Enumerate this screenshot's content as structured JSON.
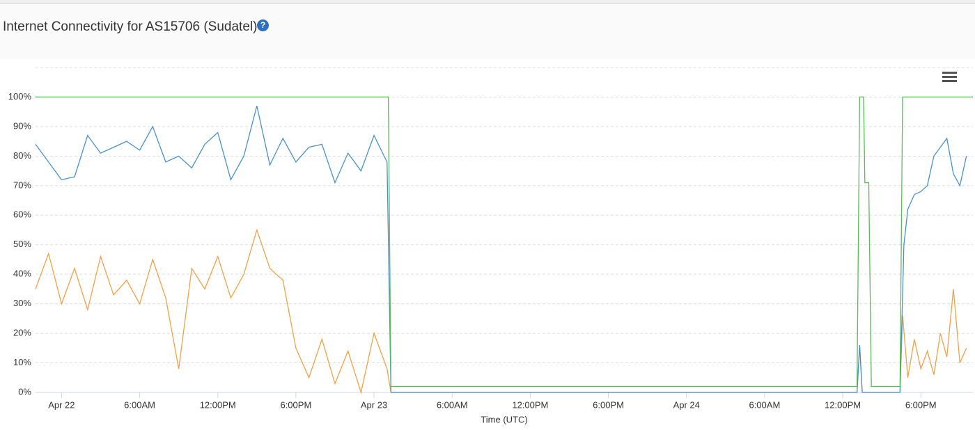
{
  "chart_data": {
    "type": "line",
    "title": "Internet Connectivity for AS15706 (Sudatel)",
    "x_label": "Time (UTC)",
    "xlim": [
      -2,
      70
    ],
    "xticks": [
      {
        "value": 0,
        "label": "Apr 22"
      },
      {
        "value": 6,
        "label": "6:00AM"
      },
      {
        "value": 12,
        "label": "12:00PM"
      },
      {
        "value": 18,
        "label": "6:00PM"
      },
      {
        "value": 24,
        "label": "Apr 23"
      },
      {
        "value": 30,
        "label": "6:00AM"
      },
      {
        "value": 36,
        "label": "12:00PM"
      },
      {
        "value": 42,
        "label": "6:00PM"
      },
      {
        "value": 48,
        "label": "Apr 24"
      },
      {
        "value": 54,
        "label": "6:00AM"
      },
      {
        "value": 60,
        "label": "12:00PM"
      },
      {
        "value": 66,
        "label": "6:00PM"
      }
    ],
    "ylim": [
      0,
      110
    ],
    "yticks": [
      {
        "value": 0,
        "label": "0%"
      },
      {
        "value": 10,
        "label": "10%"
      },
      {
        "value": 20,
        "label": "20%"
      },
      {
        "value": 30,
        "label": "30%"
      },
      {
        "value": 40,
        "label": "40%"
      },
      {
        "value": 50,
        "label": "50%"
      },
      {
        "value": 60,
        "label": "60%"
      },
      {
        "value": 70,
        "label": "70%"
      },
      {
        "value": 80,
        "label": "80%"
      },
      {
        "value": 90,
        "label": "90%"
      },
      {
        "value": 100,
        "label": "100%"
      }
    ],
    "grid": true,
    "series": [
      {
        "color": "#f0a14a",
        "x": [
          -2,
          -1,
          0,
          1,
          2,
          3,
          4,
          5,
          6,
          7,
          8,
          9,
          10,
          11,
          12,
          13,
          14,
          15,
          16,
          17,
          18,
          19,
          20,
          21,
          22,
          23,
          24,
          25,
          25.3,
          61.1,
          61.3,
          61.5,
          64.4,
          64.6,
          65,
          65.5,
          66,
          66.5,
          67,
          67.5,
          68,
          68.5,
          69,
          69.5
        ],
        "values": [
          35,
          47,
          30,
          42,
          28,
          46,
          33,
          38,
          30,
          45,
          32,
          8,
          42,
          35,
          46,
          32,
          40,
          55,
          42,
          38,
          15,
          5,
          18,
          3,
          14,
          0,
          20,
          8,
          0,
          0,
          16,
          0,
          0,
          26,
          5,
          18,
          8,
          14,
          6,
          20,
          12,
          35,
          10,
          15
        ]
      },
      {
        "color": "#4a90c8",
        "x": [
          -2,
          -1,
          0,
          1,
          2,
          3,
          4,
          5,
          6,
          7,
          8,
          9,
          10,
          11,
          12,
          13,
          14,
          15,
          16,
          17,
          18,
          19,
          20,
          21,
          22,
          23,
          24,
          25,
          25.3,
          61.1,
          61.3,
          61.5,
          64.4,
          64.7,
          65,
          65.5,
          66,
          66.5,
          67,
          67.5,
          68,
          68.5,
          69,
          69.5
        ],
        "values": [
          84,
          78,
          72,
          73,
          87,
          81,
          83,
          85,
          82,
          90,
          78,
          80,
          76,
          84,
          88,
          72,
          80,
          97,
          77,
          86,
          78,
          83,
          84,
          71,
          81,
          75,
          87,
          78,
          0,
          0,
          16,
          0,
          0,
          50,
          62,
          67,
          68,
          70,
          80,
          83,
          86,
          74,
          70,
          80
        ]
      },
      {
        "color": "#5cb85c",
        "x": [
          -2,
          25.1,
          25.3,
          61.1,
          61.3,
          61.6,
          61.7,
          62.0,
          62.2,
          64.4,
          64.6,
          70
        ],
        "values": [
          100,
          100,
          2,
          2,
          100,
          100,
          71,
          71,
          2,
          2,
          100,
          100
        ]
      }
    ]
  }
}
